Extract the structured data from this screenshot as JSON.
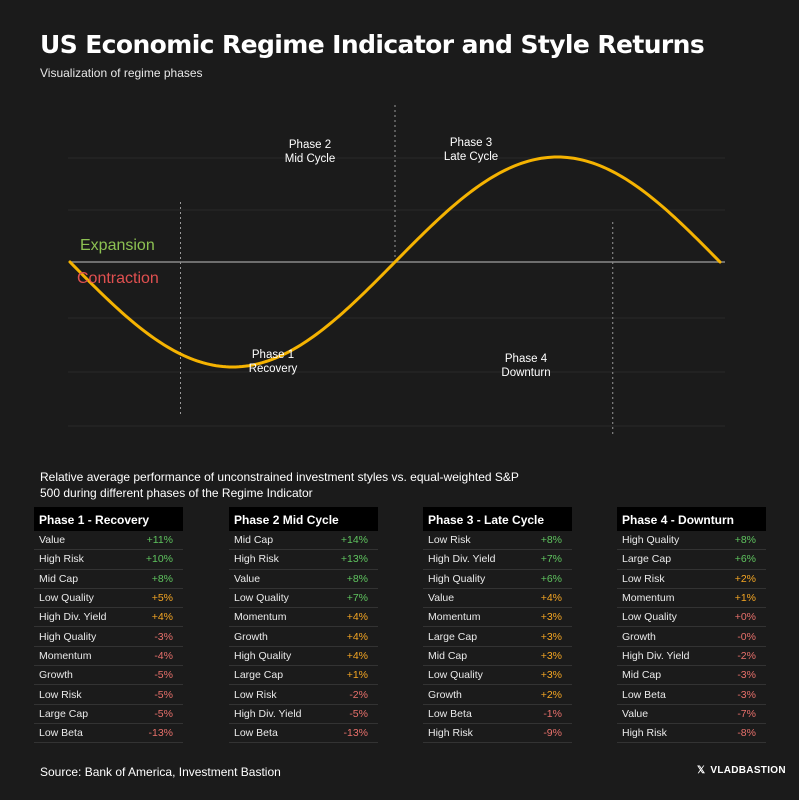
{
  "header": {
    "title": "US Economic Regime Indicator and Style Returns",
    "subtitle": "Visualization of regime phases"
  },
  "chart_data": {
    "type": "line",
    "title": "US Economic Regime Indicator and Style Returns",
    "subtitle": "Visualization of regime phases",
    "xlabel": "",
    "ylabel": "",
    "grid": true,
    "baseline_labels": [
      {
        "text": "Expansion",
        "color": "#8cc152"
      },
      {
        "text": "Contraction",
        "color": "#e05050"
      }
    ],
    "series": [
      {
        "color": "#f5b301",
        "x": [
          0,
          0.25,
          0.5,
          0.75,
          1
        ],
        "y": [
          0,
          -1,
          0,
          1,
          0
        ]
      }
    ],
    "phase_annotations": [
      {
        "lines": [
          "Phase 1",
          "Recovery"
        ]
      },
      {
        "lines": [
          "Phase 2",
          "Mid Cycle"
        ]
      },
      {
        "lines": [
          "Phase 3",
          "Late Cycle"
        ]
      },
      {
        "lines": [
          "Phase 4",
          "Downturn"
        ]
      }
    ]
  },
  "description": "Relative average performance of unconstrained investment styles vs. equal-weighted S&P 500 during different phases of the Regime Indicator",
  "colors": {
    "positive": "#5fc45f",
    "neutral": "#f5a623",
    "negative": "#e8706b"
  },
  "tables": [
    {
      "title": "Phase 1 - Recovery",
      "rows": [
        {
          "label": "Value",
          "value": "+11%",
          "tone": "positive"
        },
        {
          "label": "High Risk",
          "value": "+10%",
          "tone": "positive"
        },
        {
          "label": "Mid Cap",
          "value": "+8%",
          "tone": "positive"
        },
        {
          "label": "Low Quality",
          "value": "+5%",
          "tone": "neutral"
        },
        {
          "label": "High Div. Yield",
          "value": "+4%",
          "tone": "neutral"
        },
        {
          "label": "High Quality",
          "value": "-3%",
          "tone": "negative"
        },
        {
          "label": "Momentum",
          "value": "-4%",
          "tone": "negative"
        },
        {
          "label": "Growth",
          "value": "-5%",
          "tone": "negative"
        },
        {
          "label": "Low Risk",
          "value": "-5%",
          "tone": "negative"
        },
        {
          "label": "Large Cap",
          "value": "-5%",
          "tone": "negative"
        },
        {
          "label": "Low Beta",
          "value": "-13%",
          "tone": "negative"
        }
      ]
    },
    {
      "title": "Phase 2 Mid Cycle",
      "rows": [
        {
          "label": "Mid Cap",
          "value": "+14%",
          "tone": "positive"
        },
        {
          "label": "High Risk",
          "value": "+13%",
          "tone": "positive"
        },
        {
          "label": "Value",
          "value": "+8%",
          "tone": "positive"
        },
        {
          "label": "Low Quality",
          "value": "+7%",
          "tone": "positive"
        },
        {
          "label": "Momentum",
          "value": "+4%",
          "tone": "neutral"
        },
        {
          "label": "Growth",
          "value": "+4%",
          "tone": "neutral"
        },
        {
          "label": "High Quality",
          "value": "+4%",
          "tone": "neutral"
        },
        {
          "label": "Large Cap",
          "value": "+1%",
          "tone": "neutral"
        },
        {
          "label": "Low Risk",
          "value": "-2%",
          "tone": "negative"
        },
        {
          "label": "High Div. Yield",
          "value": "-5%",
          "tone": "negative"
        },
        {
          "label": "Low Beta",
          "value": "-13%",
          "tone": "negative"
        }
      ]
    },
    {
      "title": "Phase 3 - Late Cycle",
      "rows": [
        {
          "label": "Low Risk",
          "value": "+8%",
          "tone": "positive"
        },
        {
          "label": "High Div. Yield",
          "value": "+7%",
          "tone": "positive"
        },
        {
          "label": "High Quality",
          "value": "+6%",
          "tone": "positive"
        },
        {
          "label": "Value",
          "value": "+4%",
          "tone": "neutral"
        },
        {
          "label": "Momentum",
          "value": "+3%",
          "tone": "neutral"
        },
        {
          "label": "Large Cap",
          "value": "+3%",
          "tone": "neutral"
        },
        {
          "label": "Mid Cap",
          "value": "+3%",
          "tone": "neutral"
        },
        {
          "label": "Low Quality",
          "value": "+3%",
          "tone": "neutral"
        },
        {
          "label": "Growth",
          "value": "+2%",
          "tone": "neutral"
        },
        {
          "label": "Low Beta",
          "value": "-1%",
          "tone": "negative"
        },
        {
          "label": "High Risk",
          "value": "-9%",
          "tone": "negative"
        }
      ]
    },
    {
      "title": "Phase 4 - Downturn",
      "rows": [
        {
          "label": "High Quality",
          "value": "+8%",
          "tone": "positive"
        },
        {
          "label": "Large Cap",
          "value": "+6%",
          "tone": "positive"
        },
        {
          "label": "Low Risk",
          "value": "+2%",
          "tone": "neutral"
        },
        {
          "label": "Momentum",
          "value": "+1%",
          "tone": "neutral"
        },
        {
          "label": "Low Quality",
          "value": "+0%",
          "tone": "negative"
        },
        {
          "label": "Growth",
          "value": "-0%",
          "tone": "negative"
        },
        {
          "label": "High Div. Yield",
          "value": "-2%",
          "tone": "negative"
        },
        {
          "label": "Mid Cap",
          "value": "-3%",
          "tone": "negative"
        },
        {
          "label": "Low Beta",
          "value": "-3%",
          "tone": "negative"
        },
        {
          "label": "Value",
          "value": "-7%",
          "tone": "negative"
        },
        {
          "label": "High Risk",
          "value": "-8%",
          "tone": "negative"
        }
      ]
    }
  ],
  "footer": {
    "source": "Source: Bank of America, Investment Bastion",
    "brand_icon": "x-logo-icon",
    "brand_glyph": "𝕏",
    "brand": "VLADBASTION"
  }
}
